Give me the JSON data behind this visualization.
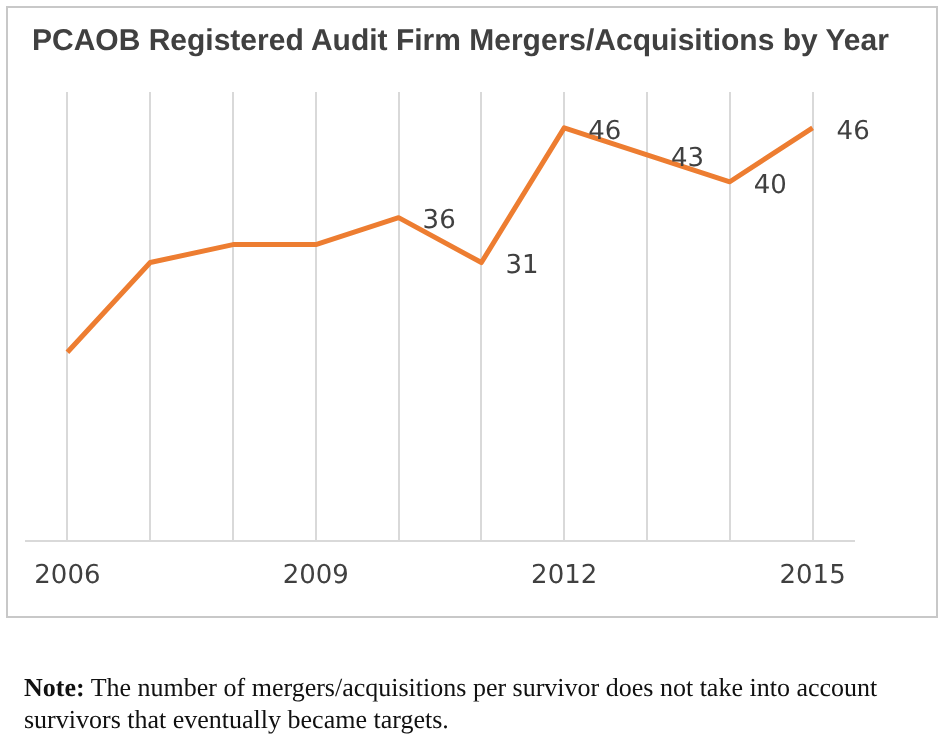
{
  "chart_data": {
    "type": "line",
    "title": "PCAOB Registered Audit Firm Mergers/Acquisitions by Year",
    "categories": [
      "2006",
      null,
      null,
      "2009",
      null,
      null,
      "2012",
      null,
      null,
      "2015"
    ],
    "values": [
      21,
      31,
      33,
      33,
      36,
      31,
      46,
      43,
      40,
      46
    ],
    "value_labels": [
      null,
      null,
      null,
      null,
      "36",
      "31",
      "46",
      "43",
      "40",
      "46"
    ],
    "color": "#ed7d31",
    "ylim": [
      0,
      50
    ],
    "grid": "x",
    "tick_labels": "x",
    "marker": "none",
    "legend": false,
    "annotations": [
      "Note: The number of mergers/acquisitions per survivor does not take into account survivors that eventually became targets."
    ]
  }
}
